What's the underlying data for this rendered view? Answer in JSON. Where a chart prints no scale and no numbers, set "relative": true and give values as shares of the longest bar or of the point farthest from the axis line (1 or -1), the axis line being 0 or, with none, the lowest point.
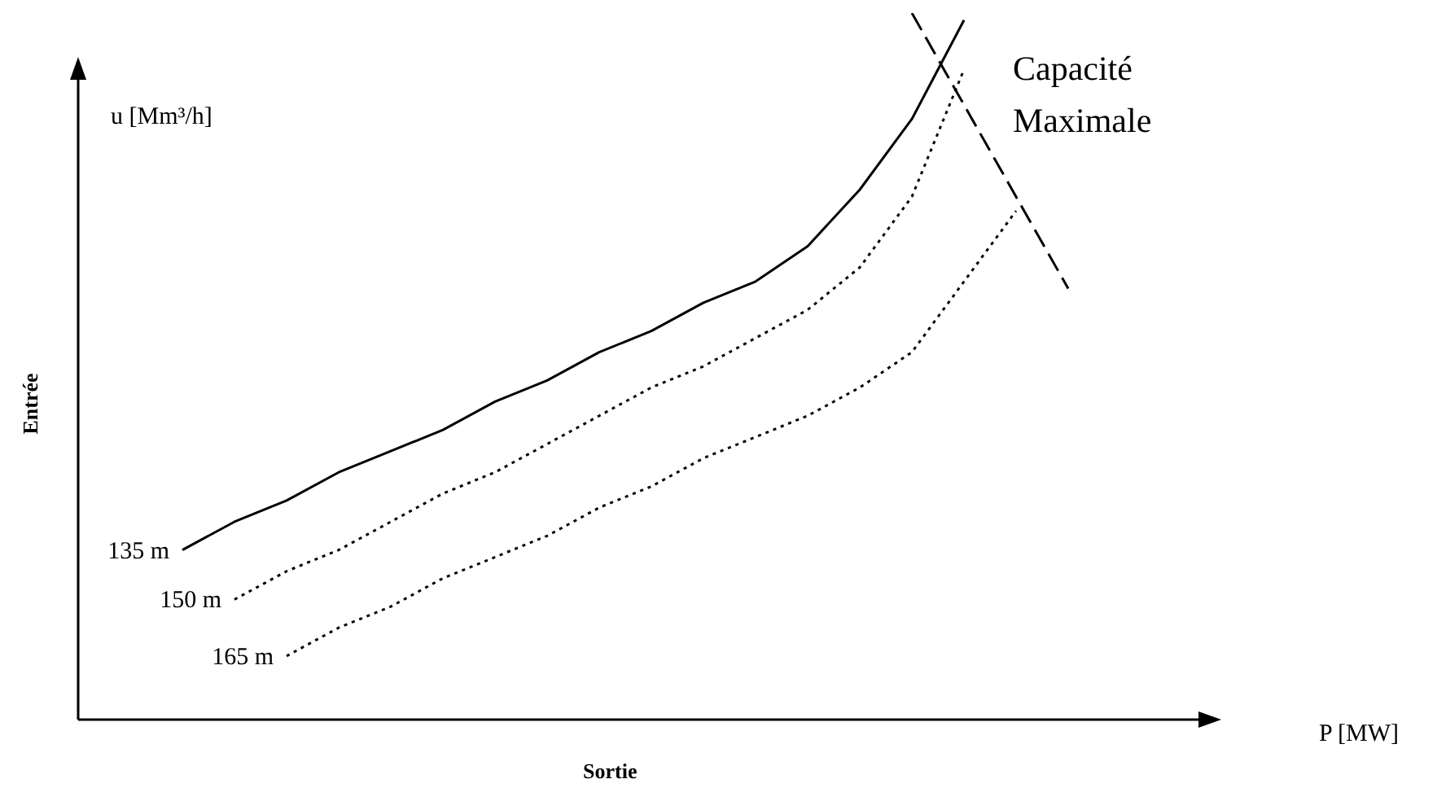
{
  "chart_data": {
    "type": "line",
    "relative": true,
    "xlabel": "Sortie",
    "ylabel": "Entrée",
    "annotations": [
      "u [Mm³/h]",
      "P [MW]"
    ],
    "legend": false,
    "marker": "none",
    "categories": [
      null,
      null,
      null,
      null,
      null,
      null,
      null,
      null,
      null,
      null,
      null,
      null,
      null,
      null,
      null,
      null,
      null,
      null,
      null,
      null,
      null,
      null
    ],
    "series": [
      {
        "name": "135 m",
        "color": "#000000",
        "line_style": "solid",
        "values": [
          null,
          null,
          0.24,
          0.28,
          0.31,
          0.35,
          0.38,
          0.41,
          0.45,
          0.48,
          0.52,
          0.55,
          0.59,
          0.62,
          0.67,
          0.75,
          0.85,
          0.99,
          null,
          null,
          null,
          null
        ]
      },
      {
        "name": "150 m",
        "color": "#000000",
        "line_style": "dotted",
        "values": [
          null,
          null,
          null,
          0.17,
          0.21,
          0.24,
          0.28,
          0.32,
          0.35,
          0.39,
          0.43,
          0.47,
          0.5,
          0.54,
          0.58,
          0.64,
          0.74,
          0.92,
          null,
          null,
          null,
          null
        ]
      },
      {
        "name": "165 m",
        "color": "#000000",
        "line_style": "dotted",
        "values": [
          null,
          null,
          null,
          null,
          0.09,
          0.13,
          0.16,
          0.2,
          0.23,
          0.26,
          0.3,
          0.33,
          0.37,
          0.4,
          0.43,
          0.47,
          0.52,
          0.62,
          0.72,
          null,
          null,
          null
        ]
      },
      {
        "name": "Capacité Maximale",
        "color": "#000000",
        "line_style": "dashed",
        "values": [
          null,
          null,
          null,
          null,
          null,
          null,
          null,
          null,
          null,
          null,
          null,
          null,
          null,
          null,
          null,
          null,
          1,
          null,
          null,
          0.61,
          null,
          null
        ]
      }
    ]
  }
}
